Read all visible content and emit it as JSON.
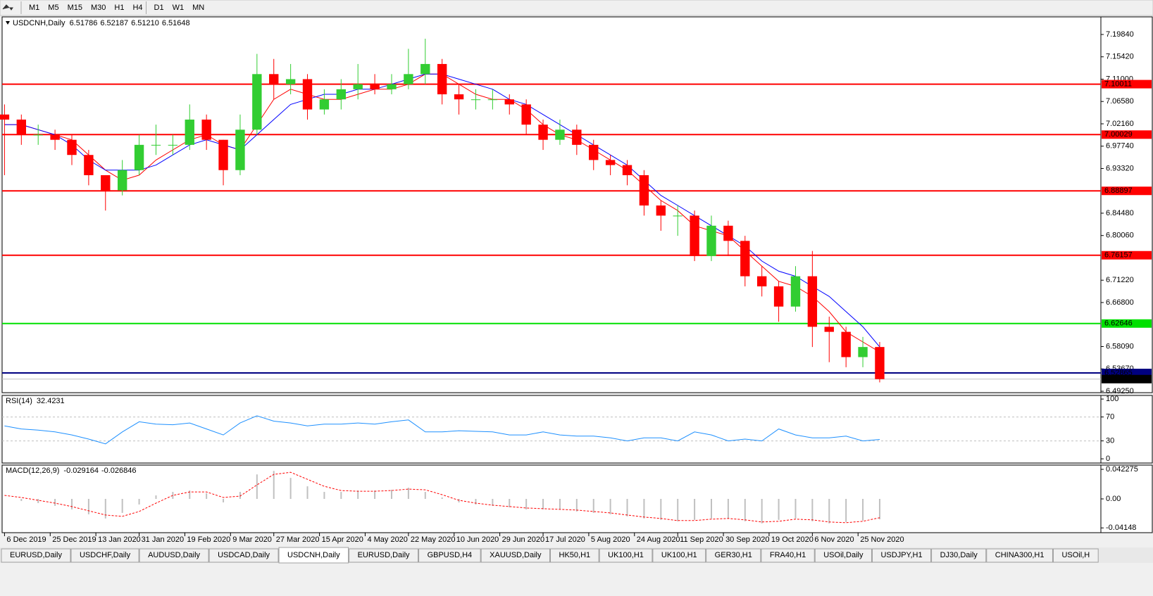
{
  "toolbar": {
    "timeframes": [
      "M1",
      "M5",
      "M15",
      "M30",
      "H1",
      "H4",
      "D1",
      "W1",
      "MN"
    ]
  },
  "tabs": [
    "EURUSD,Daily",
    "USDCHF,Daily",
    "AUDUSD,Daily",
    "USDCAD,Daily",
    "USDCNH,Daily",
    "EURUSD,Daily",
    "GBPUSD,H4",
    "XAUUSD,Daily",
    "HK50,H1",
    "UK100,H1",
    "UK100,H1",
    "GER30,H1",
    "FRA40,H1",
    "USOil,Daily",
    "USDJPY,H1",
    "DJ30,Daily",
    "CHINA300,H1",
    "USOil,H"
  ],
  "active_tab": 4,
  "chart_data": [
    {
      "type": "candlestick",
      "title": "USDCNH,Daily",
      "quote": [
        6.51786,
        6.52187,
        {
          "value": 6.5121,
          "label": "6.51210"
        },
        6.51648
      ],
      "up_color": "#32cd32",
      "down_color": "#ff0000",
      "x": [
        "2019-12-06",
        "2019-12-13",
        "2019-12-20",
        "2019-12-27",
        "2020-01-03",
        "2020-01-10",
        "2020-01-17",
        "2020-01-24",
        "2020-01-31",
        "2020-02-07",
        "2020-02-14",
        "2020-02-21",
        "2020-02-28",
        "2020-03-06",
        "2020-03-13",
        "2020-03-20",
        "2020-03-27",
        "2020-04-03",
        "2020-04-10",
        "2020-04-17",
        "2020-04-24",
        "2020-05-01",
        "2020-05-08",
        "2020-05-15",
        "2020-05-22",
        "2020-05-29",
        "2020-06-05",
        "2020-06-12",
        "2020-06-19",
        "2020-06-26",
        "2020-07-03",
        "2020-07-10",
        "2020-07-17",
        "2020-07-24",
        "2020-07-31",
        "2020-08-07",
        "2020-08-14",
        "2020-08-21",
        "2020-08-28",
        "2020-09-04",
        "2020-09-11",
        "2020-09-18",
        "2020-09-25",
        "2020-10-02",
        "2020-10-09",
        "2020-10-16",
        "2020-10-23",
        "2020-10-30",
        "2020-11-06",
        "2020-11-13",
        "2020-11-20",
        "2020-11-27",
        "2020-12-04"
      ],
      "open": [
        7.04,
        7.03,
        7.0,
        7.0,
        6.99,
        6.96,
        6.92,
        6.89,
        6.93,
        6.98,
        6.98,
        6.98,
        7.03,
        6.99,
        6.93,
        7.01,
        7.12,
        7.1,
        7.11,
        7.05,
        7.07,
        7.09,
        7.1,
        7.09,
        7.1,
        7.12,
        7.14,
        7.08,
        7.07,
        7.07,
        7.07,
        7.06,
        7.02,
        6.99,
        7.01,
        6.98,
        6.95,
        6.94,
        6.92,
        6.86,
        6.84,
        6.84,
        6.76,
        6.82,
        6.79,
        6.72,
        6.7,
        6.66,
        6.72,
        6.62,
        6.61,
        6.56,
        6.58
      ],
      "high": [
        7.06,
        7.04,
        7.02,
        7.01,
        7.0,
        6.97,
        6.92,
        6.95,
        7.0,
        7.02,
        7.0,
        7.06,
        7.04,
        6.99,
        7.04,
        7.16,
        7.15,
        7.14,
        7.12,
        7.09,
        7.11,
        7.14,
        7.12,
        7.12,
        7.17,
        7.19,
        7.15,
        7.1,
        7.09,
        7.09,
        7.08,
        7.07,
        7.03,
        7.03,
        7.02,
        6.99,
        6.96,
        6.95,
        6.93,
        6.87,
        6.86,
        6.85,
        6.84,
        6.83,
        6.8,
        6.74,
        6.71,
        6.74,
        6.77,
        6.64,
        6.62,
        6.6,
        6.59
      ],
      "low": [
        6.92,
        6.98,
        6.98,
        6.97,
        6.94,
        6.9,
        6.85,
        6.88,
        6.92,
        6.96,
        6.96,
        6.97,
        6.97,
        6.9,
        6.92,
        7.0,
        7.07,
        7.08,
        7.03,
        7.04,
        7.05,
        7.07,
        7.08,
        7.08,
        7.09,
        7.1,
        7.06,
        7.04,
        7.05,
        7.05,
        7.04,
        7.0,
        6.97,
        6.98,
        6.96,
        6.93,
        6.92,
        6.9,
        6.84,
        6.81,
        6.8,
        6.75,
        6.75,
        6.76,
        6.7,
        6.68,
        6.63,
        6.65,
        6.58,
        6.55,
        6.54,
        6.54,
        6.51
      ],
      "close": [
        7.03,
        7.0,
        7.0,
        6.99,
        6.96,
        6.92,
        6.89,
        6.93,
        6.98,
        6.98,
        6.98,
        7.03,
        6.99,
        6.93,
        7.01,
        7.12,
        7.1,
        7.11,
        7.05,
        7.07,
        7.09,
        7.1,
        7.09,
        7.1,
        7.12,
        7.14,
        7.08,
        7.07,
        7.07,
        7.07,
        7.06,
        7.02,
        6.99,
        7.01,
        6.98,
        6.95,
        6.94,
        6.92,
        6.86,
        6.84,
        6.84,
        6.76,
        6.82,
        6.79,
        6.72,
        6.7,
        6.66,
        6.72,
        6.62,
        6.61,
        6.56,
        6.58,
        6.51648
      ],
      "series": [
        {
          "color": "#ff0000",
          "values": [
            7.02,
            7.02,
            7.01,
            7.0,
            6.99,
            6.96,
            6.93,
            6.91,
            6.92,
            6.95,
            6.97,
            6.99,
            7.0,
            6.98,
            6.97,
            7.02,
            7.07,
            7.09,
            7.08,
            7.07,
            7.07,
            7.08,
            7.09,
            7.09,
            7.1,
            7.12,
            7.12,
            7.1,
            7.08,
            7.07,
            7.07,
            7.05,
            7.02,
            7.0,
            6.99,
            6.97,
            6.95,
            6.93,
            6.9,
            6.87,
            6.85,
            6.82,
            6.81,
            6.8,
            6.77,
            6.74,
            6.71,
            6.7,
            6.68,
            6.65,
            6.61,
            6.59,
            6.57
          ]
        },
        {
          "color": "#0000ff",
          "values": [
            7.02,
            7.02,
            7.01,
            7.0,
            6.98,
            6.95,
            6.93,
            6.93,
            6.93,
            6.94,
            6.96,
            6.98,
            6.99,
            6.98,
            6.97,
            7.0,
            7.03,
            7.06,
            7.07,
            7.08,
            7.08,
            7.09,
            7.09,
            7.1,
            7.11,
            7.12,
            7.12,
            7.11,
            7.1,
            7.09,
            7.07,
            7.06,
            7.04,
            7.02,
            7.0,
            6.98,
            6.96,
            6.94,
            6.91,
            6.88,
            6.86,
            6.84,
            6.82,
            6.8,
            6.78,
            6.75,
            6.73,
            6.72,
            6.7,
            6.68,
            6.65,
            6.62,
            6.58
          ]
        }
      ],
      "hlines": [
        {
          "value": 7.10011,
          "color": "#ff0000"
        },
        {
          "value": 7.00029,
          "color": "#ff0000"
        },
        {
          "value": 6.88897,
          "color": "#ff0000"
        },
        {
          "value": 6.76157,
          "color": "#ff0000"
        },
        {
          "value": 6.62646,
          "color": "#00e000"
        },
        {
          "value": 6.52865,
          "color": "#000080"
        }
      ],
      "bid_line": 6.51648,
      "xlim": [
        "2019-12-05",
        "2021-03-06"
      ],
      "ylim": [
        6.4897,
        7.2332
      ],
      "yticks": [
        {
          "value": 7.1984,
          "label": "7.19840"
        },
        {
          "value": 7.1542,
          "label": "7.15420"
        },
        {
          "value": 7.11,
          "label": "7.11000"
        },
        {
          "value": 7.0658,
          "label": "7.06580"
        },
        {
          "value": 7.0216,
          "label": "7.02160"
        },
        {
          "value": 6.9774,
          "label": "6.97740"
        },
        {
          "value": 6.9332,
          "label": "6.93320"
        },
        {
          "value": 6.8448,
          "label": "6.84480"
        },
        {
          "value": 6.8006,
          "label": "6.80060"
        },
        {
          "value": 6.7122,
          "label": "6.71220"
        },
        {
          "value": 6.668,
          "label": "6.66800"
        },
        {
          "value": 6.5809,
          "label": "6.58090"
        },
        {
          "value": 6.5367,
          "label": "6.53670"
        },
        {
          "value": 6.4925,
          "label": "6.49250"
        }
      ],
      "xticks": [
        {
          "value": "2019-12-06",
          "label": "6 Dec 2019"
        },
        {
          "value": "2019-12-25",
          "label": "25 Dec 2019"
        },
        {
          "value": "2020-01-13",
          "label": "13 Jan 2020"
        },
        {
          "value": "2020-01-31",
          "label": "31 Jan 2020"
        },
        {
          "value": "2020-02-19",
          "label": "19 Feb 2020"
        },
        {
          "value": "2020-03-09",
          "label": "9 Mar 2020"
        },
        {
          "value": "2020-03-27",
          "label": "27 Mar 2020"
        },
        {
          "value": "2020-04-15",
          "label": "15 Apr 2020"
        },
        {
          "value": "2020-05-04",
          "label": "4 May 2020"
        },
        {
          "value": "2020-05-22",
          "label": "22 May 2020"
        },
        {
          "value": "2020-06-10",
          "label": "10 Jun 2020"
        },
        {
          "value": "2020-06-29",
          "label": "29 Jun 2020"
        },
        {
          "value": "2020-07-17",
          "label": "17 Jul 2020"
        },
        {
          "value": "2020-08-05",
          "label": "5 Aug 2020"
        },
        {
          "value": "2020-08-24",
          "label": "24 Aug 2020"
        },
        {
          "value": "2020-09-11",
          "label": "11 Sep 2020"
        },
        {
          "value": "2020-09-30",
          "label": "30 Sep 2020"
        },
        {
          "value": "2020-10-19",
          "label": "19 Oct 2020"
        },
        {
          "value": "2020-11-06",
          "label": "6 Nov 2020"
        },
        {
          "value": "2020-11-25",
          "label": "25 Nov 2020"
        }
      ]
    },
    {
      "type": "line",
      "title": "RSI(14)",
      "readout": [
        32.4231
      ],
      "color": "#1e90ff",
      "values": [
        55,
        50,
        48,
        45,
        40,
        33,
        25,
        45,
        62,
        58,
        57,
        60,
        50,
        40,
        60,
        72,
        63,
        60,
        55,
        58,
        58,
        60,
        58,
        62,
        65,
        45,
        45,
        47,
        46,
        45,
        40,
        40,
        45,
        40,
        38,
        38,
        35,
        30,
        35,
        35,
        30,
        45,
        40,
        30,
        33,
        30,
        50,
        40,
        35,
        35,
        38,
        30,
        32.4231
      ],
      "ylim": [
        -7,
        106
      ],
      "yticks": [
        100,
        70,
        30,
        0
      ],
      "levels": [
        70,
        30
      ]
    },
    {
      "type": "macd",
      "title": "MACD(12,26,9)",
      "readout": [
        -0.029164,
        -0.026846
      ],
      "histogram": {
        "color": "#c0c0c0",
        "values": [
          0,
          -0.003,
          -0.006,
          -0.01,
          -0.015,
          -0.022,
          -0.028,
          -0.02,
          -0.008,
          0.005,
          0.01,
          0.012,
          0.008,
          -0.005,
          0.01,
          0.035,
          0.04,
          0.03,
          0.018,
          0.01,
          0.01,
          0.012,
          0.012,
          0.013,
          0.016,
          0.01,
          0.002,
          -0.005,
          -0.008,
          -0.01,
          -0.012,
          -0.015,
          -0.015,
          -0.015,
          -0.018,
          -0.02,
          -0.022,
          -0.025,
          -0.028,
          -0.03,
          -0.032,
          -0.03,
          -0.028,
          -0.028,
          -0.032,
          -0.035,
          -0.03,
          -0.028,
          -0.032,
          -0.035,
          -0.033,
          -0.031,
          -0.029164
        ]
      },
      "signal": {
        "color": "#ff0000",
        "values": [
          0.005,
          0.002,
          -0.002,
          -0.006,
          -0.011,
          -0.017,
          -0.023,
          -0.025,
          -0.018,
          -0.006,
          0.005,
          0.01,
          0.01,
          0.002,
          0.004,
          0.02,
          0.035,
          0.038,
          0.028,
          0.018,
          0.012,
          0.011,
          0.011,
          0.012,
          0.014,
          0.013,
          0.006,
          -0.002,
          -0.006,
          -0.009,
          -0.011,
          -0.013,
          -0.014,
          -0.015,
          -0.016,
          -0.018,
          -0.02,
          -0.023,
          -0.026,
          -0.028,
          -0.031,
          -0.031,
          -0.029,
          -0.028,
          -0.03,
          -0.033,
          -0.032,
          -0.029,
          -0.03,
          -0.033,
          -0.034,
          -0.032,
          -0.026846
        ]
      },
      "ylim": [
        -0.0483,
        0.0483
      ],
      "yticks": [
        0.042275,
        {
          "value": 0,
          "label": "0.00"
        },
        -0.04148
      ]
    }
  ]
}
